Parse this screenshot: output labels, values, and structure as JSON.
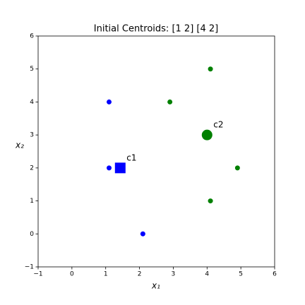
{
  "chart_data": {
    "type": "scatter",
    "title": "Initial Centroids: [1 2] [4 2]",
    "xlabel": "x₁",
    "ylabel": "x₂",
    "xlim": [
      -1,
      6
    ],
    "ylim": [
      -1,
      6
    ],
    "xticks": [
      {
        "value": -1,
        "label": "−1"
      },
      0,
      1,
      2,
      3,
      4,
      5,
      6
    ],
    "yticks": [
      {
        "value": -1,
        "label": "−1"
      },
      0,
      1,
      2,
      3,
      4,
      5,
      6
    ],
    "series": [
      {
        "color": "#0000ff",
        "x": [
          1.1,
          1.1,
          2.1
        ],
        "values": [
          4,
          2,
          0
        ]
      },
      {
        "color": "#008000",
        "x": [
          4.1,
          2.9,
          4.9,
          4.1
        ],
        "values": [
          5,
          4,
          2,
          1
        ]
      }
    ],
    "centroids": [
      {
        "label": "c1",
        "x": 1.43,
        "y": 2,
        "color": "#0000ff",
        "marker": "square"
      },
      {
        "label": "c2",
        "x": 4.0,
        "y": 3,
        "color": "#008000",
        "marker": "circle"
      }
    ]
  }
}
